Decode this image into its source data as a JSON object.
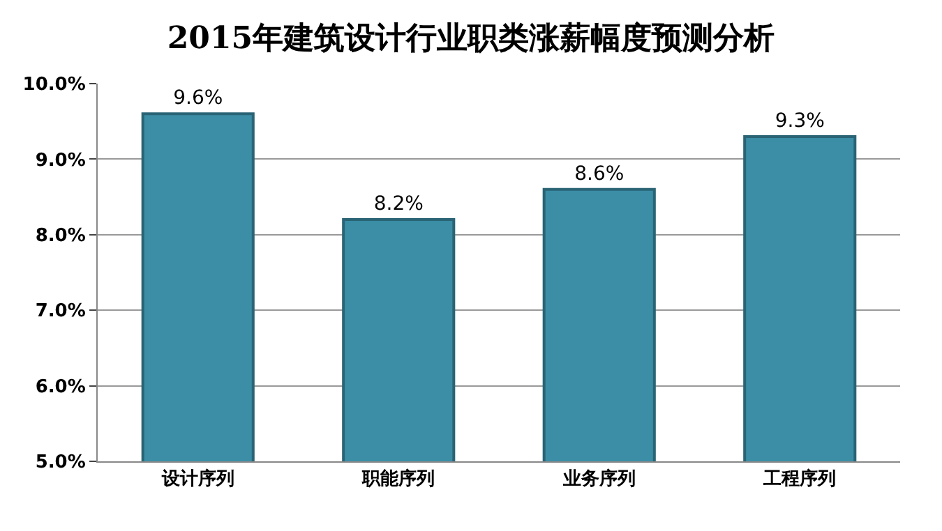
{
  "chart_data": {
    "type": "bar",
    "title": "2015年建筑设计行业职类涨薪幅度预测分析",
    "categories": [
      "设计序列",
      "职能序列",
      "业务序列",
      "工程序列"
    ],
    "values": [
      9.6,
      8.2,
      8.6,
      9.3
    ],
    "value_labels": [
      "9.6%",
      "8.2%",
      "8.6%",
      "9.3%"
    ],
    "color": "#3b8ea6",
    "ylim": [
      5,
      10
    ],
    "yticks": [
      {
        "value": 5,
        "label": "5.0%"
      },
      {
        "value": 6,
        "label": "6.0%"
      },
      {
        "value": 7,
        "label": "7.0%"
      },
      {
        "value": 8,
        "label": "8.0%"
      },
      {
        "value": 9,
        "label": "9.0%"
      },
      {
        "value": 10,
        "label": "10.0%"
      }
    ],
    "grid": "y",
    "legend": false
  }
}
